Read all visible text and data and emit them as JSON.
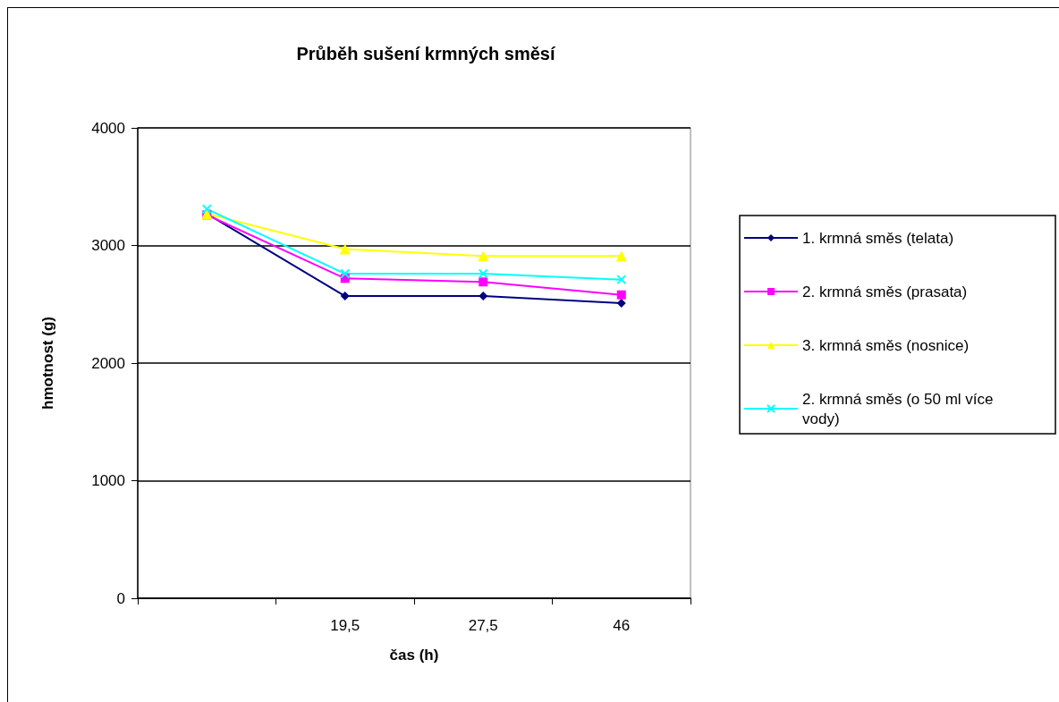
{
  "chart_data": {
    "type": "line",
    "title": "Průběh sušení krmných směsí",
    "xlabel": "čas (h)",
    "ylabel": "hmotnost (g)",
    "categories": [
      null,
      "19,5",
      "27,5",
      "46"
    ],
    "series": [
      {
        "name": "1. krmná směs (telata)",
        "color": "#000080",
        "marker": "diamond",
        "values": [
          3270,
          2570,
          2570,
          2510
        ]
      },
      {
        "name": "2. krmná směs (prasata)",
        "color": "#ff00ff",
        "marker": "square",
        "values": [
          3260,
          2720,
          2690,
          2580
        ]
      },
      {
        "name": "3. krmná směs (nosnice)",
        "color": "#ffff00",
        "marker": "triangle",
        "values": [
          3270,
          2970,
          2910,
          2910
        ]
      },
      {
        "name": "2. krmná směs (o 50 ml více vody)",
        "color": "#00ffff",
        "marker": "cross",
        "values": [
          3310,
          2760,
          2760,
          2710
        ]
      }
    ],
    "ylim": [
      0,
      4000
    ],
    "yticks": [
      0,
      1000,
      2000,
      3000,
      4000
    ],
    "grid": "y",
    "legend": "right"
  }
}
